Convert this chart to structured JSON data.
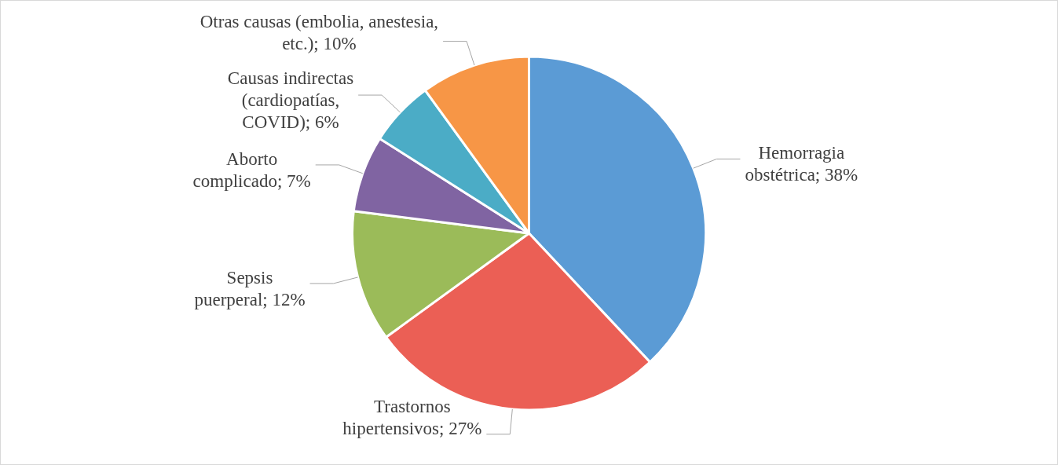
{
  "chart_data": {
    "type": "pie",
    "categories": [
      "Hemorragia obstétrica",
      "Trastornos hipertensivos",
      "Sepsis puerperal",
      "Aborto complicado",
      "Causas indirectas (cardiopatías, COVID)",
      "Otras causas (embolia, anestesia, etc.)"
    ],
    "values": [
      38,
      27,
      12,
      7,
      6,
      10
    ],
    "value_labels": [
      "38%",
      "27%",
      "12%",
      "7%",
      "6%",
      "10%"
    ],
    "colors": [
      "#5b9bd5",
      "#eb5f55",
      "#9bbb59",
      "#8064a2",
      "#4bacc6",
      "#f79646"
    ],
    "legend": false
  }
}
